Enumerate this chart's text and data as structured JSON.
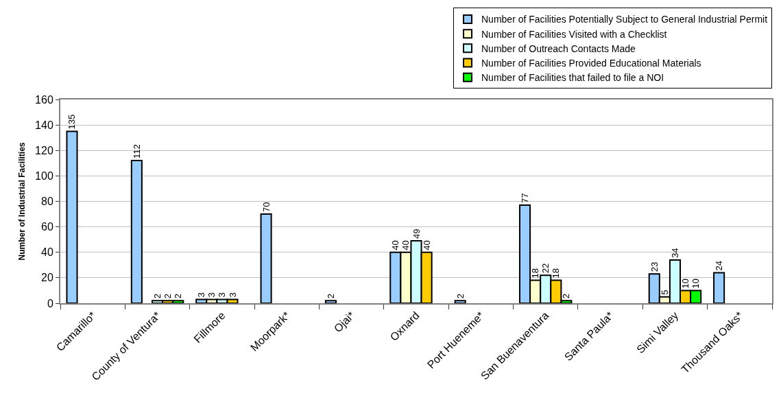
{
  "chart_data": {
    "type": "bar",
    "ylabel": "Number of Industrial Facilities",
    "categories": [
      "Camarillo*",
      "County of Ventura*",
      "Fillmore",
      "Moorpark*",
      "Ojai*",
      "Oxnard",
      "Port Hueneme*",
      "San Buenaventura",
      "Santa Paula*",
      "Simi Valley",
      "Thousand Oaks*"
    ],
    "series": [
      {
        "name": "Number of Facilities Potentially Subject to General Industrial Permit",
        "color": "#99ccff",
        "values": [
          135,
          112,
          3,
          70,
          2,
          40,
          2,
          77,
          null,
          23,
          24
        ]
      },
      {
        "name": "Number of Facilities Visited with a Checklist",
        "color": "#ffffcc",
        "values": [
          null,
          null,
          3,
          null,
          null,
          40,
          null,
          18,
          null,
          5,
          null
        ]
      },
      {
        "name": "Number of Outreach Contacts Made",
        "color": "#ccffff",
        "values": [
          null,
          2,
          3,
          null,
          null,
          49,
          null,
          22,
          null,
          34,
          null
        ]
      },
      {
        "name": "Number of Facilities Provided Educational Materials",
        "color": "#ffcc00",
        "values": [
          null,
          2,
          3,
          null,
          null,
          40,
          null,
          18,
          null,
          10,
          null
        ]
      },
      {
        "name": "Number of Facilities that failed to file a NOI",
        "color": "#00ff00",
        "values": [
          null,
          2,
          null,
          null,
          null,
          null,
          null,
          2,
          null,
          10,
          null
        ]
      }
    ],
    "ylim": [
      0,
      160
    ],
    "yticks": [
      0,
      20,
      40,
      60,
      80,
      100,
      120,
      140,
      160
    ],
    "grid": "y",
    "legend": "top right",
    "data_labels": true
  }
}
